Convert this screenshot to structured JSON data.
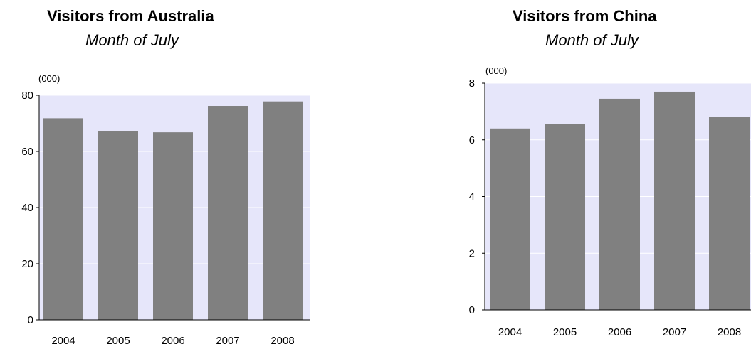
{
  "chart_data": [
    {
      "type": "bar",
      "title": "Visitors from Australia",
      "subtitle": "Month of July",
      "unit_label": "(000)",
      "categories": [
        "2004",
        "2005",
        "2006",
        "2007",
        "2008"
      ],
      "values": [
        71.8,
        67.2,
        66.8,
        76.2,
        77.8
      ],
      "ylim": [
        0,
        80
      ],
      "yticks": [
        0,
        20,
        40,
        60,
        80
      ],
      "grid": true,
      "colors": {
        "bar": "#808080",
        "plot_bg": "#e6e6fa",
        "grid": "#ffffff"
      }
    },
    {
      "type": "bar",
      "title": "Visitors from China",
      "subtitle": "Month of July",
      "unit_label": "(000)",
      "categories": [
        "2004",
        "2005",
        "2006",
        "2007",
        "2008"
      ],
      "values": [
        6.4,
        6.55,
        7.45,
        7.7,
        6.8
      ],
      "ylim": [
        0,
        8
      ],
      "yticks": [
        0,
        2,
        4,
        6,
        8
      ],
      "grid": true,
      "colors": {
        "bar": "#808080",
        "plot_bg": "#e6e6fa",
        "grid": "#ffffff"
      }
    }
  ]
}
